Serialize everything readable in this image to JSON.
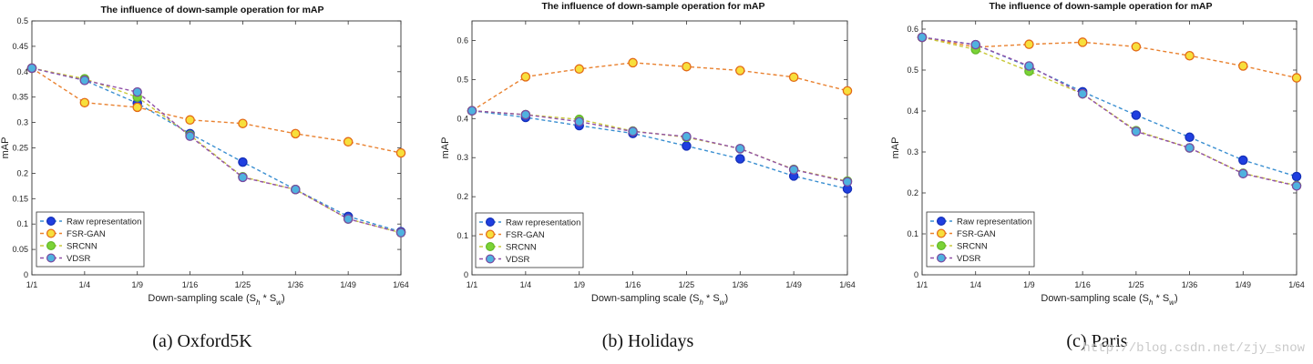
{
  "watermark": "http://blog.csdn.net/zjy_snow",
  "series_styles": [
    {
      "name": "Raw representation",
      "line": "#3a8fd1",
      "fill": "#1f3fe0",
      "stroke": "#1530b8"
    },
    {
      "name": "FSR-GAN",
      "line": "#e9812f",
      "fill": "#f7df3c",
      "stroke": "#e36a17"
    },
    {
      "name": "SRCNN",
      "line": "#c9c93c",
      "fill": "#7bd336",
      "stroke": "#63b82a"
    },
    {
      "name": "VDSR",
      "line": "#9150a8",
      "fill": "#4fb2df",
      "stroke": "#7a4aa0"
    }
  ],
  "chart_data": [
    {
      "type": "line",
      "title": "The influence of down-sample operation for mAP",
      "caption": "(a)  Oxford5K",
      "xlabel": "Down-sampling scale (S",
      "xlabel_sub1": "h",
      "xlabel_mid": " * S",
      "xlabel_sub2": "w",
      "xlabel_end": ")",
      "ylabel": "mAP",
      "categories": [
        "1/1",
        "1/4",
        "1/9",
        "1/16",
        "1/25",
        "1/36",
        "1/49",
        "1/64"
      ],
      "ylim": [
        0,
        0.5
      ],
      "yticks": [
        0,
        0.05,
        0.1,
        0.15,
        0.2,
        0.25,
        0.3,
        0.35,
        0.4,
        0.45,
        0.5
      ],
      "ytick_labels": [
        "0",
        "0.05",
        "0.1",
        "0.15",
        "0.2",
        "0.25",
        "0.3",
        "0.35",
        "0.4",
        "0.45",
        "0.5"
      ],
      "legend_placement": "bottom-left",
      "series": [
        {
          "name": "Raw representation",
          "values": [
            0.407,
            0.383,
            0.338,
            0.278,
            0.222,
            0.168,
            0.115,
            0.085
          ]
        },
        {
          "name": "FSR-GAN",
          "values": [
            0.407,
            0.339,
            0.33,
            0.305,
            0.298,
            0.278,
            0.262,
            0.24
          ]
        },
        {
          "name": "SRCNN",
          "values": [
            0.407,
            0.386,
            0.35,
            0.275,
            0.193,
            0.168,
            0.11,
            0.083
          ]
        },
        {
          "name": "VDSR",
          "values": [
            0.407,
            0.383,
            0.36,
            0.273,
            0.192,
            0.168,
            0.11,
            0.083
          ]
        }
      ]
    },
    {
      "type": "line",
      "title": "The influence of down-sample operation for mAP",
      "caption": "(b)  Holidays",
      "xlabel": "Down-sampling scale (S",
      "xlabel_sub1": "h",
      "xlabel_mid": " * S",
      "xlabel_sub2": "w",
      "xlabel_end": ")",
      "ylabel": "mAP",
      "categories": [
        "1/1",
        "1/4",
        "1/9",
        "1/16",
        "1/25",
        "1/36",
        "1/49",
        "1/64"
      ],
      "ylim": [
        0,
        0.65
      ],
      "yticks": [
        0,
        0.1,
        0.2,
        0.3,
        0.4,
        0.5,
        0.6
      ],
      "ytick_labels": [
        "0",
        "0.1",
        "0.2",
        "0.3",
        "0.4",
        "0.5",
        "0.6"
      ],
      "legend_placement": "bottom-left",
      "series": [
        {
          "name": "Raw representation",
          "values": [
            0.42,
            0.403,
            0.382,
            0.362,
            0.33,
            0.297,
            0.253,
            0.22
          ]
        },
        {
          "name": "FSR-GAN",
          "values": [
            0.42,
            0.507,
            0.527,
            0.543,
            0.533,
            0.523,
            0.506,
            0.471
          ]
        },
        {
          "name": "SRCNN",
          "values": [
            0.42,
            0.41,
            0.398,
            0.368,
            0.352,
            0.323,
            0.27,
            0.24
          ]
        },
        {
          "name": "VDSR",
          "values": [
            0.42,
            0.41,
            0.392,
            0.367,
            0.354,
            0.323,
            0.269,
            0.238
          ]
        }
      ]
    },
    {
      "type": "line",
      "title": "The influence of down-sample operation for mAP",
      "caption": "(c)  Paris",
      "xlabel": "Down-sampling scale (S",
      "xlabel_sub1": "h",
      "xlabel_mid": " * S",
      "xlabel_sub2": "w",
      "xlabel_end": ")",
      "ylabel": "mAP",
      "categories": [
        "1/1",
        "1/4",
        "1/9",
        "1/16",
        "1/25",
        "1/36",
        "1/49",
        "1/64"
      ],
      "ylim": [
        0,
        0.62
      ],
      "yticks": [
        0,
        0.1,
        0.2,
        0.3,
        0.4,
        0.5,
        0.6
      ],
      "ytick_labels": [
        "0",
        "0.1",
        "0.2",
        "0.3",
        "0.4",
        "0.5",
        "0.6"
      ],
      "legend_placement": "bottom-left",
      "series": [
        {
          "name": "Raw representation",
          "values": [
            0.58,
            0.562,
            0.508,
            0.447,
            0.39,
            0.336,
            0.28,
            0.24
          ]
        },
        {
          "name": "FSR-GAN",
          "values": [
            0.58,
            0.556,
            0.563,
            0.568,
            0.557,
            0.535,
            0.51,
            0.481
          ]
        },
        {
          "name": "SRCNN",
          "values": [
            0.58,
            0.55,
            0.497,
            0.442,
            0.352,
            0.31,
            0.248,
            0.218
          ]
        },
        {
          "name": "VDSR",
          "values": [
            0.58,
            0.562,
            0.51,
            0.442,
            0.35,
            0.31,
            0.247,
            0.217
          ]
        }
      ]
    }
  ]
}
